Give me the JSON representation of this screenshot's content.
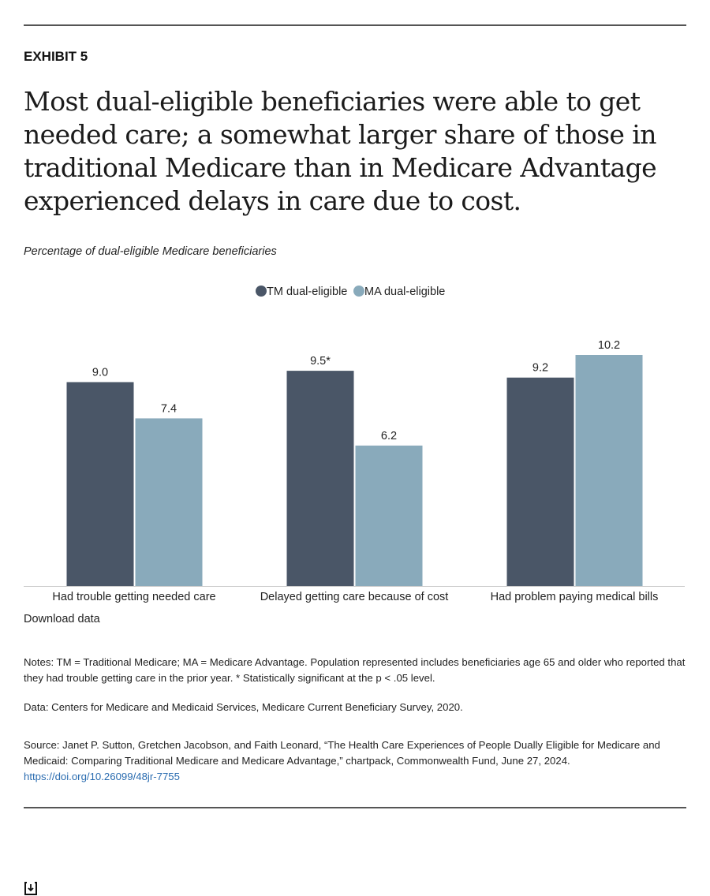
{
  "header": {
    "exhibit": "EXHIBIT 5",
    "title": "Most dual-eligible beneficiaries were able to get needed care; a somewhat larger share of those in traditional Medicare than in Medicare Advantage experienced delays in care due to cost."
  },
  "chart_data": {
    "type": "bar",
    "title": "Most dual-eligible beneficiaries were able to get needed care; a somewhat larger share of those in traditional Medicare than in Medicare Advantage experienced delays in care due to cost.",
    "subtitle": "Percentage of dual-eligible Medicare beneficiaries",
    "categories": [
      "Had trouble getting needed care",
      "Delayed getting care because of cost",
      "Had problem paying medical bills"
    ],
    "series": [
      {
        "name": "TM dual-eligible",
        "color": "#4a5667",
        "values": [
          9.0,
          9.5,
          9.2
        ],
        "labels": [
          "9.0",
          "9.5*",
          "9.2"
        ]
      },
      {
        "name": "MA dual-eligible",
        "color": "#89aabb",
        "values": [
          7.4,
          6.2,
          10.2
        ],
        "labels": [
          "7.4",
          "6.2",
          "10.2"
        ]
      }
    ],
    "xlabel": "",
    "ylabel": "",
    "ylim": [
      0,
      10.2
    ],
    "grid": false,
    "legend": "top-center"
  },
  "download": {
    "label": "Download data",
    "icon": "download-icon"
  },
  "notes": "Notes: TM = Traditional Medicare; MA = Medicare Advantage. Population represented includes beneficiaries age 65 and older who reported that they had trouble getting care in the prior year. * Statistically significant at the p < .05 level.",
  "data_source": "Data: Centers for Medicare and Medicaid Services, Medicare Current Beneficiary Survey, 2020.",
  "source": "Source: Janet P. Sutton, Gretchen Jacobson, and Faith Leonard, “The Health Care Experiences of People Dually Eligible for Medicare and Medicaid: Comparing Traditional Medicare and Medicare Advantage,” chartpack, Commonwealth Fund, June 27, 2024.",
  "source_link": "https://doi.org/10.26099/48jr-7755"
}
